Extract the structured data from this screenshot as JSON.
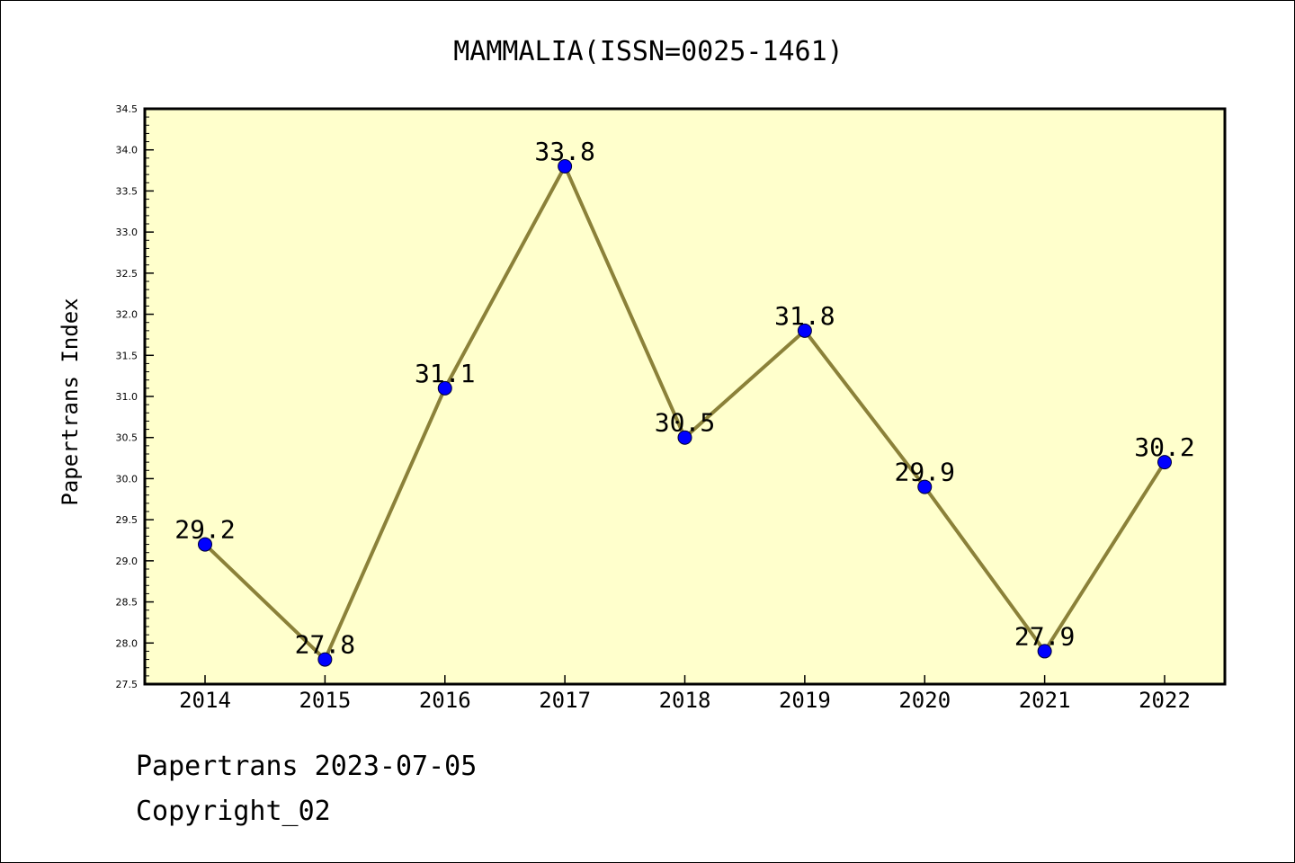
{
  "chart_data": {
    "type": "line",
    "title": "MAMMALIA(ISSN=0025-1461)",
    "xlabel": "",
    "ylabel": "Papertrans Index",
    "categories": [
      "2014",
      "2015",
      "2016",
      "2017",
      "2018",
      "2019",
      "2020",
      "2021",
      "2022"
    ],
    "values": [
      29.2,
      27.8,
      31.1,
      33.8,
      30.5,
      31.8,
      29.9,
      27.9,
      30.2
    ],
    "data_labels": [
      "29.2",
      "27.8",
      "31.1",
      "33.8",
      "30.5",
      "31.8",
      "29.9",
      "27.9",
      "30.2"
    ],
    "ylim": [
      27.5,
      34.5
    ],
    "yticks": [
      "27.5",
      "28.0",
      "28.5",
      "29.0",
      "29.5",
      "30.0",
      "30.5",
      "31.0",
      "31.5",
      "32.0",
      "32.5",
      "33.0",
      "33.5",
      "34.0",
      "34.5"
    ],
    "grid": false,
    "colors": {
      "plot_background": "#ffffcc",
      "line": "#8b8139",
      "marker": "#0000ff"
    }
  },
  "footer": {
    "date_line": "Papertrans 2023-07-05",
    "copyright_line": "Copyright_02"
  }
}
